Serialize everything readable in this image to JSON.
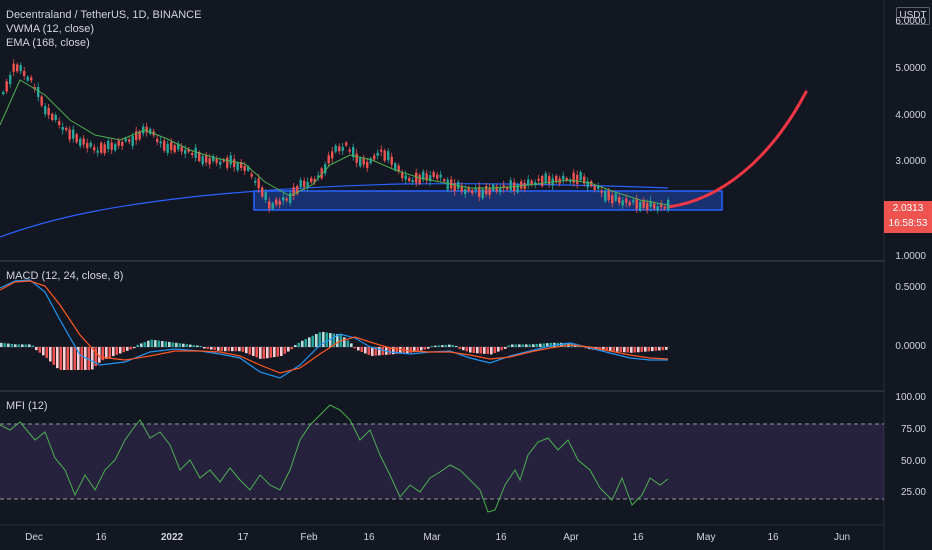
{
  "header": {
    "symbol_line": "Decentraland / TetherUS, 1D, BINANCE",
    "indicators": [
      "VWMA (12, close)",
      "EMA (168, close)"
    ],
    "currency": "USDT"
  },
  "price_pane": {
    "y_ticks": [
      "6.0000",
      "5.0000",
      "4.0000",
      "3.0000",
      "1.0000"
    ],
    "last_price": "2.0313",
    "countdown": "16:58:53"
  },
  "macd_pane": {
    "title": "MACD (12, 24, close, 8)",
    "y_ticks": [
      "0.5000",
      "0.0000"
    ]
  },
  "mfi_pane": {
    "title": "MFI (12)",
    "y_ticks": [
      "100.00",
      "75.00",
      "50.00",
      "25.00"
    ]
  },
  "x_axis": {
    "labels": [
      "Dec",
      "16",
      "2022",
      "17",
      "Feb",
      "16",
      "Mar",
      "16",
      "Apr",
      "16",
      "May",
      "16",
      "Jun"
    ]
  },
  "colors": {
    "background": "#131722",
    "up": "#26a69a",
    "down": "#ef5350",
    "vwma": "#4caf50",
    "ema": "#2962ff",
    "macd_line": "#2196f3",
    "signal_line": "#ff5722",
    "mfi_line": "#4caf50",
    "mfi_band": "#7e57c2",
    "projection": "#f23645"
  }
}
